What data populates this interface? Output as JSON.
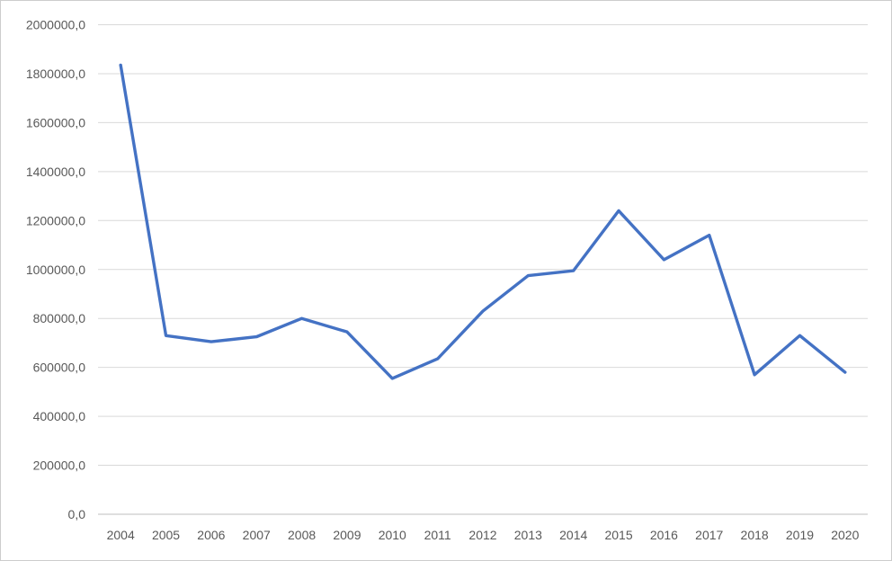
{
  "chart": {
    "background": "#FFFFFF",
    "border_color": "#CDCDCD"
  },
  "chart_data": {
    "type": "line",
    "title": "",
    "subtitle": "",
    "xlabel": "",
    "ylabel": "",
    "legend": false,
    "grid": true,
    "categories": [
      "2004",
      "2005",
      "2006",
      "2007",
      "2008",
      "2009",
      "2010",
      "2011",
      "2012",
      "2013",
      "2014",
      "2015",
      "2016",
      "2017",
      "2018",
      "2019",
      "2020"
    ],
    "values": [
      1835000,
      730000,
      705000,
      725000,
      800000,
      745000,
      555000,
      635000,
      830000,
      975000,
      995000,
      1240000,
      1040000,
      1140000,
      570000,
      730000,
      580000
    ],
    "ylim": [
      0,
      2000000
    ],
    "ytick_step": 200000,
    "ytick_labels": [
      "0,0",
      "200000,0",
      "400000,0",
      "600000,0",
      "800000,0",
      "1000000,0",
      "1200000,0",
      "1400000,0",
      "1600000,0",
      "1800000,0",
      "2000000,0"
    ],
    "decimal_separator": ",",
    "line_color": "#4472C4",
    "line_width": 3.4,
    "grid_color": "#D9D9D9",
    "axis_line_color": "#BFBFBF",
    "tick_label_color": "#595959",
    "tick_font_size": 14
  }
}
